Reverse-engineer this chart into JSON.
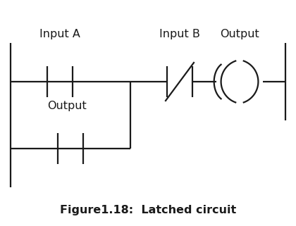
{
  "title": "Figure1.18:  Latched circuit",
  "label_inputA": "Input A",
  "label_inputB": "Input B",
  "label_output_top": "Output",
  "label_output_mid": "Output",
  "fig_width": 4.2,
  "fig_height": 3.21,
  "dpi": 100,
  "line_color": "#1a1a1a",
  "lw": 1.6
}
